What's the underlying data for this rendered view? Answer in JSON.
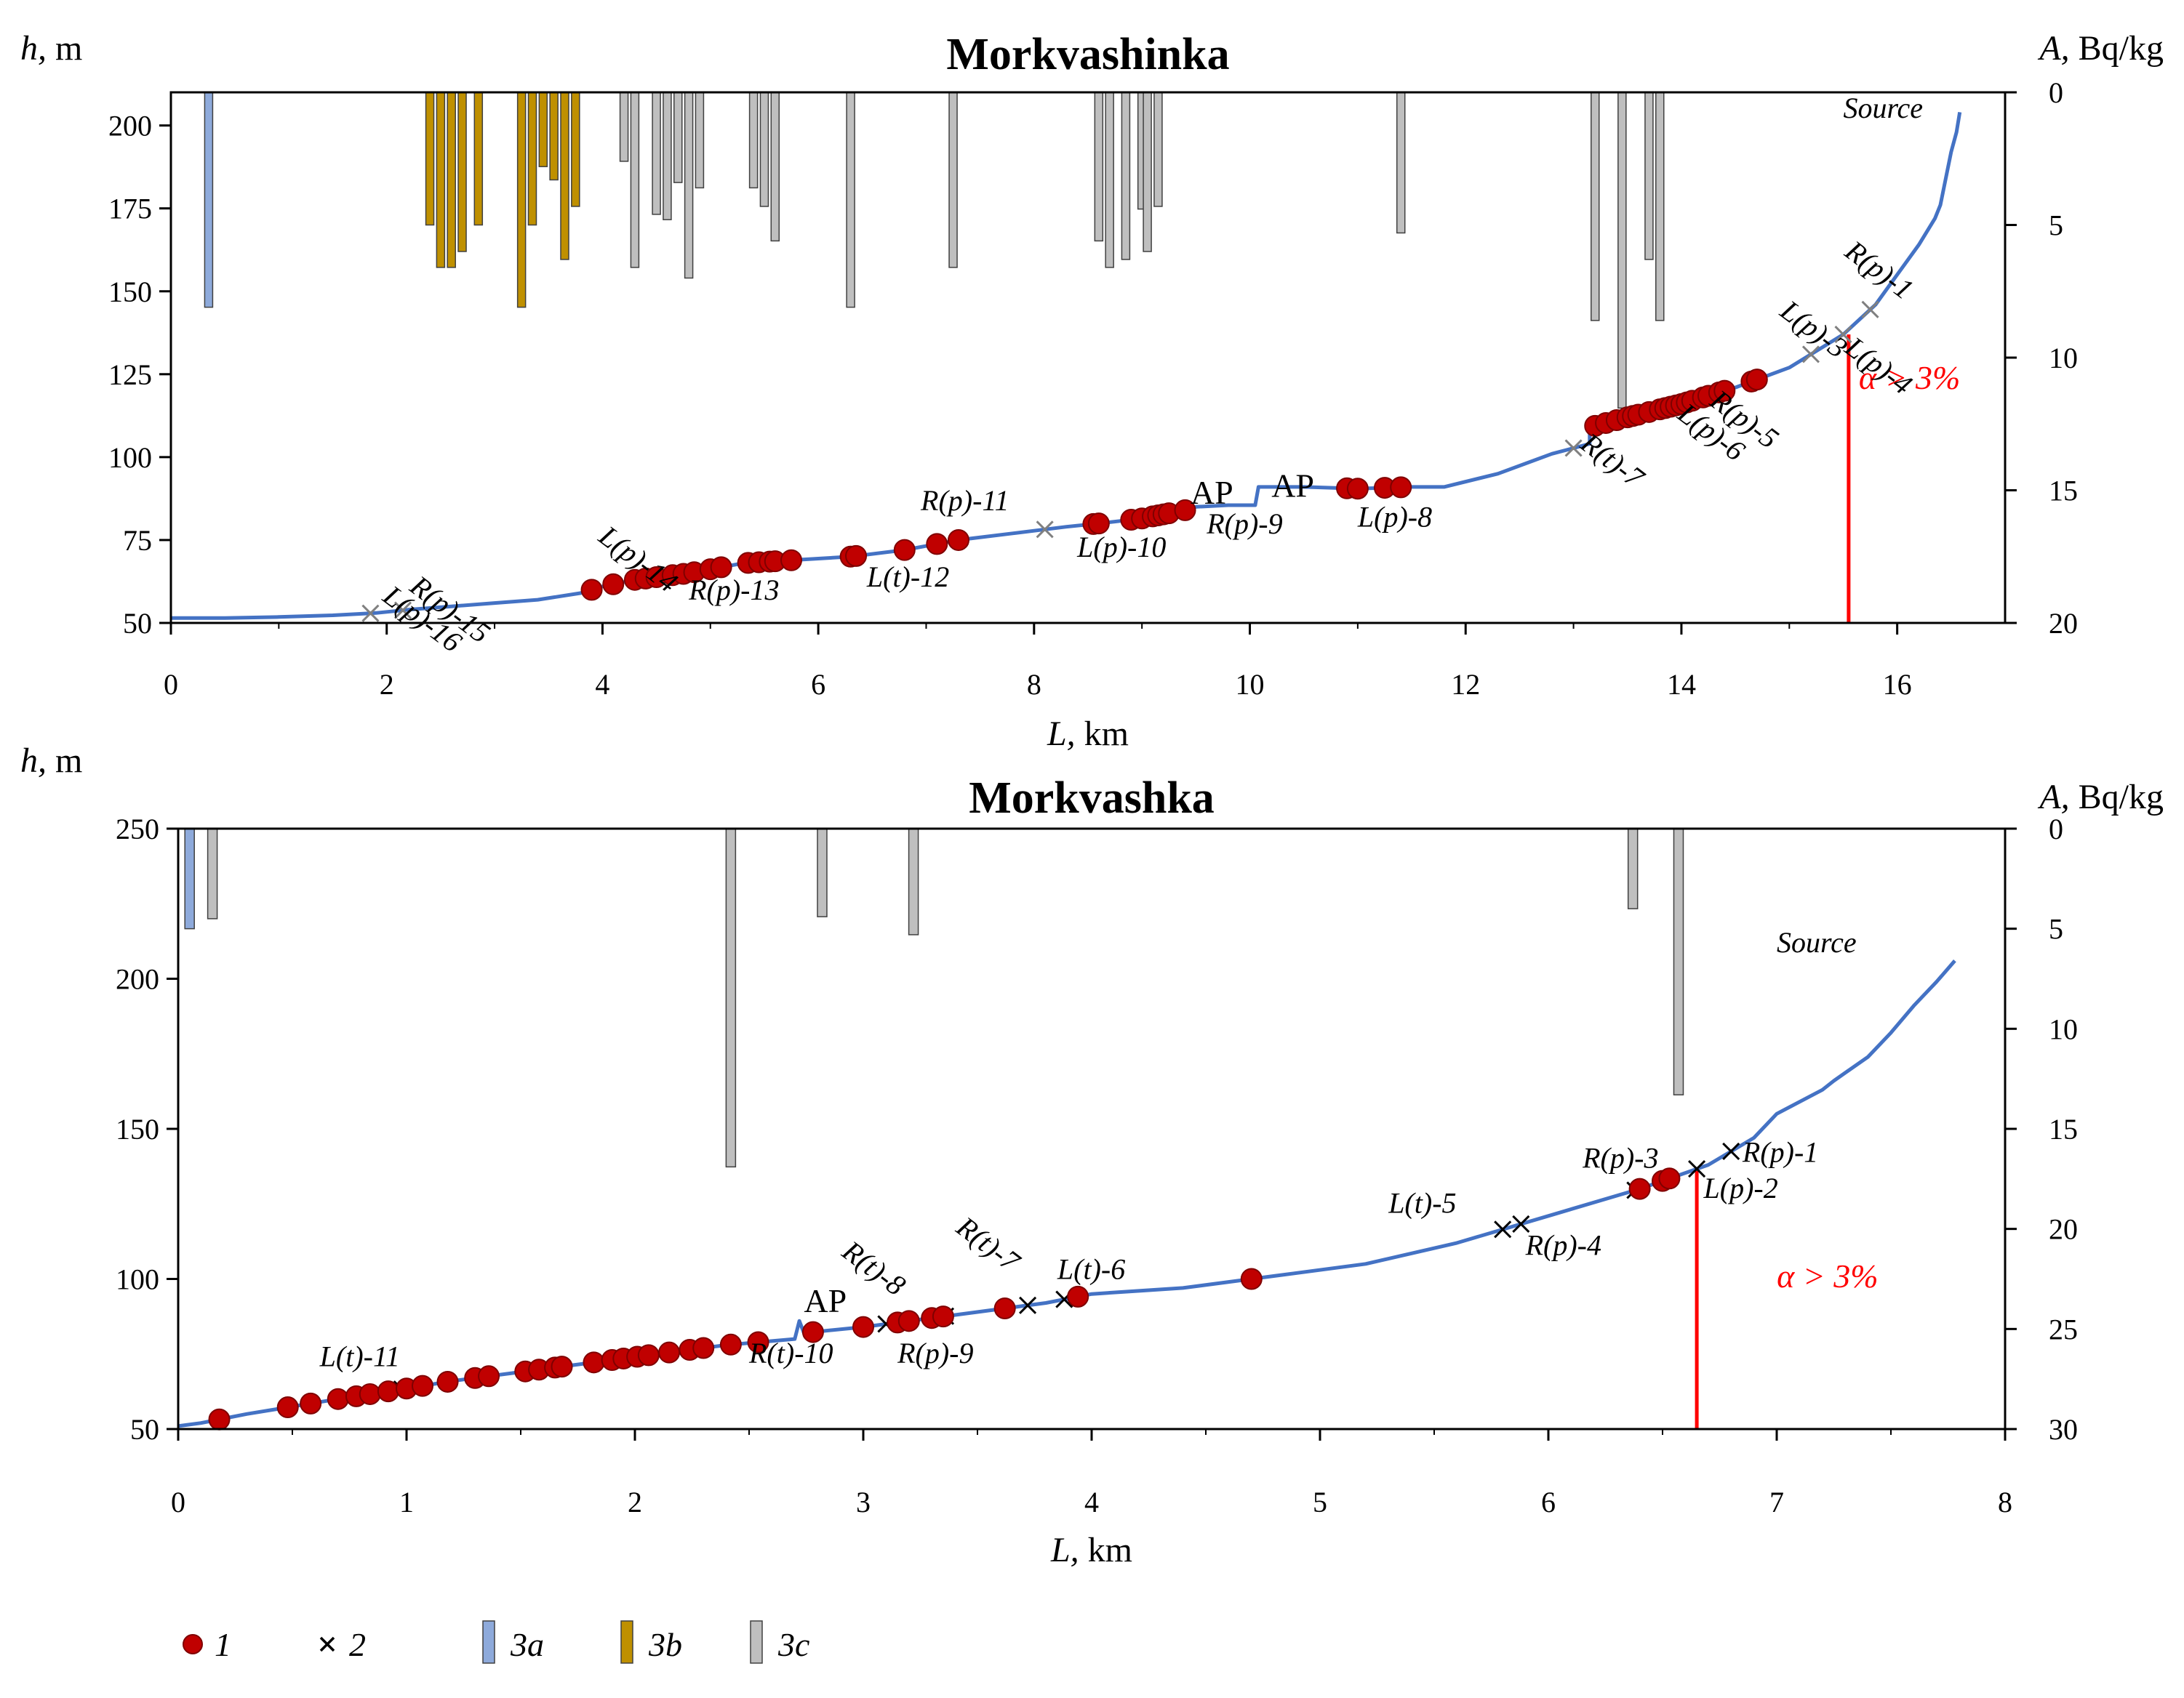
{
  "chart_data": [
    {
      "type": "combo",
      "title": "Morkvashinka",
      "ylabel_left_var": "h,",
      "ylabel_left_unit": " m",
      "ylabel_right_var": "A,",
      "ylabel_right_unit": " Bq/kg",
      "xlabel_var": "L,",
      "xlabel_unit": " km",
      "xlim": [
        0,
        17
      ],
      "xticks": [
        0,
        2,
        4,
        6,
        8,
        10,
        12,
        14,
        16
      ],
      "ylim": [
        50,
        210
      ],
      "yticks": [
        50,
        75,
        100,
        125,
        150,
        175,
        200
      ],
      "y2lim": [
        0,
        20
      ],
      "y2ticks": [
        0,
        5,
        10,
        15,
        20
      ],
      "y2_inverted": true,
      "source_label": "Source",
      "slope_label": "α > 3%",
      "slope_x": 15.55,
      "slope_top_h": 137,
      "profile": [
        [
          0,
          51.5
        ],
        [
          0.5,
          51.5
        ],
        [
          1,
          51.8
        ],
        [
          1.5,
          52.3
        ],
        [
          1.9,
          53
        ],
        [
          2.2,
          54
        ],
        [
          2.6,
          55
        ],
        [
          3,
          56
        ],
        [
          3.4,
          57
        ],
        [
          3.8,
          59
        ],
        [
          4,
          61
        ],
        [
          4.3,
          63
        ],
        [
          4.8,
          65
        ],
        [
          5.3,
          68
        ],
        [
          5.8,
          69
        ],
        [
          6.3,
          70
        ],
        [
          6.8,
          72
        ],
        [
          7.3,
          75
        ],
        [
          7.8,
          77
        ],
        [
          8.3,
          79
        ],
        [
          8.6,
          80
        ],
        [
          9,
          81.5
        ],
        [
          9.4,
          84
        ],
        [
          9.5,
          85
        ],
        [
          9.8,
          85.5
        ],
        [
          10.05,
          85.5
        ],
        [
          10.08,
          91
        ],
        [
          10.5,
          91
        ],
        [
          11,
          90.5
        ],
        [
          11.5,
          91
        ],
        [
          11.8,
          91
        ],
        [
          12.3,
          95
        ],
        [
          12.8,
          101
        ],
        [
          13.15,
          104
        ],
        [
          13.15,
          109
        ],
        [
          13.5,
          112
        ],
        [
          14,
          116
        ],
        [
          14.5,
          121
        ],
        [
          15,
          127
        ],
        [
          15.5,
          137
        ],
        [
          15.8,
          146
        ],
        [
          16,
          155
        ],
        [
          16.2,
          164
        ],
        [
          16.35,
          172
        ],
        [
          16.4,
          176
        ],
        [
          16.45,
          184
        ],
        [
          16.5,
          192
        ],
        [
          16.55,
          198
        ],
        [
          16.58,
          204
        ]
      ],
      "points": [
        3.9,
        4.1,
        4.3,
        4.4,
        4.5,
        4.65,
        4.75,
        4.85,
        5.0,
        5.1,
        5.35,
        5.45,
        5.55,
        5.6,
        5.75,
        6.3,
        6.35,
        6.8,
        7.1,
        7.3,
        8.55,
        8.6,
        8.9,
        9.0,
        9.1,
        9.15,
        9.2,
        9.25,
        9.4,
        10.9,
        11.0,
        11.25,
        11.4,
        13.2,
        13.3,
        13.4,
        13.5,
        13.55,
        13.6,
        13.7,
        13.8,
        13.85,
        13.9,
        13.95,
        14.0,
        14.05,
        14.1,
        14.2,
        14.25,
        14.35,
        14.4,
        14.65,
        14.7
      ],
      "crosses": [
        1.85,
        2.15,
        8.1,
        13.0,
        15.2,
        15.5,
        15.75
      ],
      "bars": [
        {
          "x": 0.35,
          "value": 8.1,
          "cat": "3a"
        },
        {
          "x": 2.4,
          "value": 5.0,
          "cat": "3b"
        },
        {
          "x": 2.5,
          "value": 6.6,
          "cat": "3b"
        },
        {
          "x": 2.6,
          "value": 6.6,
          "cat": "3b"
        },
        {
          "x": 2.7,
          "value": 6.0,
          "cat": "3b"
        },
        {
          "x": 2.85,
          "value": 5.0,
          "cat": "3b"
        },
        {
          "x": 3.25,
          "value": 8.1,
          "cat": "3b"
        },
        {
          "x": 3.35,
          "value": 5.0,
          "cat": "3b"
        },
        {
          "x": 3.45,
          "value": 2.8,
          "cat": "3b"
        },
        {
          "x": 3.55,
          "value": 3.3,
          "cat": "3b"
        },
        {
          "x": 3.65,
          "value": 6.3,
          "cat": "3b"
        },
        {
          "x": 3.75,
          "value": 4.3,
          "cat": "3b"
        },
        {
          "x": 4.2,
          "value": 2.6,
          "cat": "3c"
        },
        {
          "x": 4.3,
          "value": 6.6,
          "cat": "3c"
        },
        {
          "x": 4.5,
          "value": 4.6,
          "cat": "3c"
        },
        {
          "x": 4.6,
          "value": 4.8,
          "cat": "3c"
        },
        {
          "x": 4.7,
          "value": 3.4,
          "cat": "3c"
        },
        {
          "x": 4.8,
          "value": 7.0,
          "cat": "3c"
        },
        {
          "x": 4.9,
          "value": 3.6,
          "cat": "3c"
        },
        {
          "x": 5.4,
          "value": 3.6,
          "cat": "3c"
        },
        {
          "x": 5.5,
          "value": 4.3,
          "cat": "3c"
        },
        {
          "x": 5.6,
          "value": 5.6,
          "cat": "3c"
        },
        {
          "x": 6.3,
          "value": 8.1,
          "cat": "3c"
        },
        {
          "x": 7.25,
          "value": 6.6,
          "cat": "3c"
        },
        {
          "x": 8.6,
          "value": 5.6,
          "cat": "3c"
        },
        {
          "x": 8.7,
          "value": 6.6,
          "cat": "3c"
        },
        {
          "x": 8.85,
          "value": 6.3,
          "cat": "3c"
        },
        {
          "x": 9.0,
          "value": 4.4,
          "cat": "3c"
        },
        {
          "x": 9.05,
          "value": 6.0,
          "cat": "3c"
        },
        {
          "x": 9.15,
          "value": 4.3,
          "cat": "3c"
        },
        {
          "x": 11.4,
          "value": 5.3,
          "cat": "3c"
        },
        {
          "x": 13.2,
          "value": 8.6,
          "cat": "3c"
        },
        {
          "x": 13.45,
          "value": 11.9,
          "cat": "3c"
        },
        {
          "x": 13.7,
          "value": 6.3,
          "cat": "3c"
        },
        {
          "x": 13.8,
          "value": 8.6,
          "cat": "3c"
        }
      ],
      "annotations": [
        {
          "text": "R(p)-15",
          "x": 2.2,
          "h": 60,
          "rot": 37
        },
        {
          "text": "L(p)-16",
          "x": 1.95,
          "h": 57,
          "rot": 37
        },
        {
          "text": "L(p)-14",
          "x": 3.95,
          "h": 75,
          "rot": 37
        },
        {
          "text": "R(p)-13",
          "x": 4.8,
          "h": 57,
          "rot": 0
        },
        {
          "text": "L(t)-12",
          "x": 6.45,
          "h": 61,
          "rot": 0
        },
        {
          "text": "R(p)-11",
          "x": 6.95,
          "h": 84,
          "rot": 0
        },
        {
          "text": "L(p)-10",
          "x": 8.4,
          "h": 70,
          "rot": 0
        },
        {
          "text": "R(p)-9",
          "x": 9.6,
          "h": 77,
          "rot": 0
        },
        {
          "text": "L(p)-8",
          "x": 11.0,
          "h": 79,
          "rot": 0
        },
        {
          "text": "R(t)-7",
          "x": 13.05,
          "h": 103,
          "rot": 37
        },
        {
          "text": "L(p)-6",
          "x": 13.95,
          "h": 112,
          "rot": 37
        },
        {
          "text": "R(p)-5",
          "x": 14.25,
          "h": 116,
          "rot": 37
        },
        {
          "text": "L(p)-4",
          "x": 15.5,
          "h": 132,
          "rot": 37
        },
        {
          "text": "L(p)-3",
          "x": 14.9,
          "h": 143,
          "rot": 37
        },
        {
          "text": "R(p)-1",
          "x": 15.5,
          "h": 161,
          "rot": 37
        }
      ],
      "ap_labels": [
        {
          "text": "AP",
          "x": 9.45,
          "h": 86
        },
        {
          "text": "AP",
          "x": 10.2,
          "h": 88
        }
      ]
    },
    {
      "type": "combo",
      "title": "Morkvashka",
      "ylabel_left_var": "h,",
      "ylabel_left_unit": " m",
      "ylabel_right_var": "A,",
      "ylabel_right_unit": " Bq/kg",
      "xlabel_var": "L,",
      "xlabel_unit": " km",
      "xlim": [
        0,
        8
      ],
      "xticks": [
        0,
        1,
        2,
        3,
        4,
        5,
        6,
        7,
        8
      ],
      "ylim": [
        50,
        250
      ],
      "yticks": [
        50,
        100,
        150,
        200,
        250
      ],
      "y2lim": [
        0,
        30
      ],
      "y2ticks": [
        0,
        5,
        10,
        15,
        20,
        25,
        30
      ],
      "y2_inverted": true,
      "source_label": "Source",
      "slope_label": "α > 3%",
      "slope_x": 6.65,
      "slope_top_h": 136,
      "profile": [
        [
          0,
          51
        ],
        [
          0.1,
          52
        ],
        [
          0.2,
          53.5
        ],
        [
          0.3,
          55
        ],
        [
          0.5,
          57.5
        ],
        [
          0.7,
          60
        ],
        [
          1.0,
          63.5
        ],
        [
          1.2,
          66
        ],
        [
          1.5,
          69
        ],
        [
          1.8,
          72
        ],
        [
          2.1,
          75
        ],
        [
          2.4,
          78
        ],
        [
          2.7,
          80
        ],
        [
          2.72,
          86
        ],
        [
          2.74,
          82
        ],
        [
          3.0,
          84
        ],
        [
          3.4,
          88
        ],
        [
          3.8,
          92
        ],
        [
          4.0,
          95
        ],
        [
          4.4,
          97
        ],
        [
          4.8,
          101
        ],
        [
          5.2,
          105
        ],
        [
          5.6,
          112
        ],
        [
          6.0,
          121
        ],
        [
          6.4,
          130
        ],
        [
          6.7,
          138
        ],
        [
          6.9,
          147
        ],
        [
          7.0,
          155
        ],
        [
          7.2,
          163
        ],
        [
          7.25,
          166
        ],
        [
          7.4,
          174
        ],
        [
          7.5,
          182
        ],
        [
          7.6,
          191
        ],
        [
          7.7,
          199
        ],
        [
          7.78,
          206
        ]
      ],
      "points": [
        0.18,
        0.48,
        0.58,
        0.7,
        0.78,
        0.84,
        0.92,
        1.0,
        1.07,
        1.18,
        1.3,
        1.36,
        1.52,
        1.58,
        1.65,
        1.68,
        1.82,
        1.9,
        1.95,
        2.01,
        2.06,
        2.15,
        2.24,
        2.3,
        2.42,
        2.54,
        2.78,
        3.0,
        3.15,
        3.2,
        3.3,
        3.35,
        3.62,
        3.94,
        4.7,
        6.4,
        6.5,
        6.53
      ],
      "crosses": [
        0.98,
        3.1,
        3.18,
        3.36,
        3.72,
        3.88,
        5.8,
        5.88,
        6.38,
        6.65,
        6.8
      ],
      "bars": [
        {
          "x": 0.05,
          "value": 5.0,
          "cat": "3a"
        },
        {
          "x": 0.15,
          "value": 4.5,
          "cat": "3c"
        },
        {
          "x": 2.42,
          "value": 16.9,
          "cat": "3c"
        },
        {
          "x": 2.82,
          "value": 4.4,
          "cat": "3c"
        },
        {
          "x": 3.22,
          "value": 5.3,
          "cat": "3c"
        },
        {
          "x": 6.37,
          "value": 4.0,
          "cat": "3c"
        },
        {
          "x": 6.57,
          "value": 13.3,
          "cat": "3c"
        }
      ],
      "annotations": [
        {
          "text": "L(t)-11",
          "x": 0.62,
          "h": 71,
          "rot": 0
        },
        {
          "text": "R(t)-10",
          "x": 2.5,
          "h": 72,
          "rot": 0
        },
        {
          "text": "R(p)-9",
          "x": 3.15,
          "h": 72,
          "rot": 0
        },
        {
          "text": "R(t)-8",
          "x": 2.9,
          "h": 108,
          "rot": 37
        },
        {
          "text": "R(t)-7",
          "x": 3.4,
          "h": 116,
          "rot": 37
        },
        {
          "text": "L(t)-6",
          "x": 3.85,
          "h": 100,
          "rot": 0
        },
        {
          "text": "L(t)-5",
          "x": 5.3,
          "h": 122,
          "rot": 0
        },
        {
          "text": "R(p)-4",
          "x": 5.9,
          "h": 108,
          "rot": 0
        },
        {
          "text": "R(p)-3",
          "x": 6.15,
          "h": 137,
          "rot": 0
        },
        {
          "text": "L(p)-2",
          "x": 6.68,
          "h": 127,
          "rot": 0
        },
        {
          "text": "R(p)-1",
          "x": 6.85,
          "h": 139,
          "rot": 0
        }
      ],
      "ap_labels": [
        {
          "text": "AP",
          "x": 2.74,
          "h": 89
        }
      ]
    }
  ],
  "legend": [
    {
      "symbol": "circle",
      "label": "1"
    },
    {
      "symbol": "cross",
      "label": "2"
    },
    {
      "symbol": "bar-3a",
      "label": "3a"
    },
    {
      "symbol": "bar-3b",
      "label": "3b"
    },
    {
      "symbol": "bar-3c",
      "label": "3c"
    }
  ],
  "colors": {
    "profile": "#4472c4",
    "point_fill": "#c00000",
    "point_stroke": "#7f0000",
    "slope": "#ff0000",
    "cat_3a": "#8eaadb",
    "cat_3b": "#bf9000",
    "cat_3c": "#bfbfbf"
  }
}
